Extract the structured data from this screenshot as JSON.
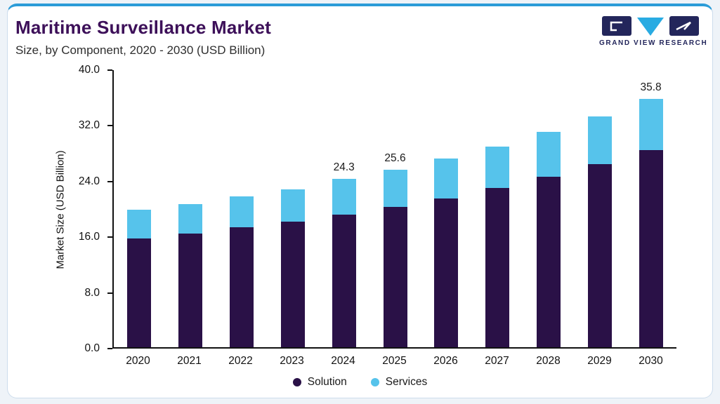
{
  "header": {
    "title": "Maritime Surveillance Market",
    "subtitle": "Size, by Component, 2020 - 2030 (USD Billion)"
  },
  "logo": {
    "brand": "GRAND VIEW RESEARCH"
  },
  "colors": {
    "title": "#3D1059",
    "subtitle": "#2F2F2F",
    "accent_top": "#2B9CD8",
    "card_border": "#CCDCEC",
    "page_bg": "#EEF3F8",
    "axis": "#111111",
    "logo_navy": "#23265B",
    "logo_cyan": "#29ABE2"
  },
  "chart_data": {
    "type": "bar",
    "stacked": true,
    "title": "Maritime Surveillance Market Size, by Component, 2020 - 2030 (USD Billion)",
    "ylabel": "Market Size (USD Billion)",
    "xlabel": "",
    "ylim": [
      0,
      40
    ],
    "yticks": [
      "0.0",
      "8.0",
      "16.0",
      "24.0",
      "32.0",
      "40.0"
    ],
    "grid": false,
    "legend_position": "bottom",
    "categories": [
      "2020",
      "2021",
      "2022",
      "2023",
      "2024",
      "2025",
      "2026",
      "2027",
      "2028",
      "2029",
      "2030"
    ],
    "series": [
      {
        "name": "Solution",
        "color": "#2A1147",
        "values": [
          15.7,
          16.4,
          17.3,
          18.1,
          19.1,
          20.3,
          21.5,
          23.0,
          24.6,
          26.4,
          28.5
        ]
      },
      {
        "name": "Services",
        "color": "#56C3EB",
        "values": [
          4.1,
          4.3,
          4.5,
          4.7,
          5.2,
          5.3,
          5.7,
          6.0,
          6.5,
          6.9,
          7.3
        ]
      }
    ],
    "totals": [
      19.8,
      20.7,
      21.8,
      22.8,
      24.3,
      25.6,
      27.2,
      29.0,
      31.1,
      33.3,
      35.8
    ],
    "bar_labels": {
      "2024": "24.3",
      "2025": "25.6",
      "2030": "35.8"
    }
  }
}
